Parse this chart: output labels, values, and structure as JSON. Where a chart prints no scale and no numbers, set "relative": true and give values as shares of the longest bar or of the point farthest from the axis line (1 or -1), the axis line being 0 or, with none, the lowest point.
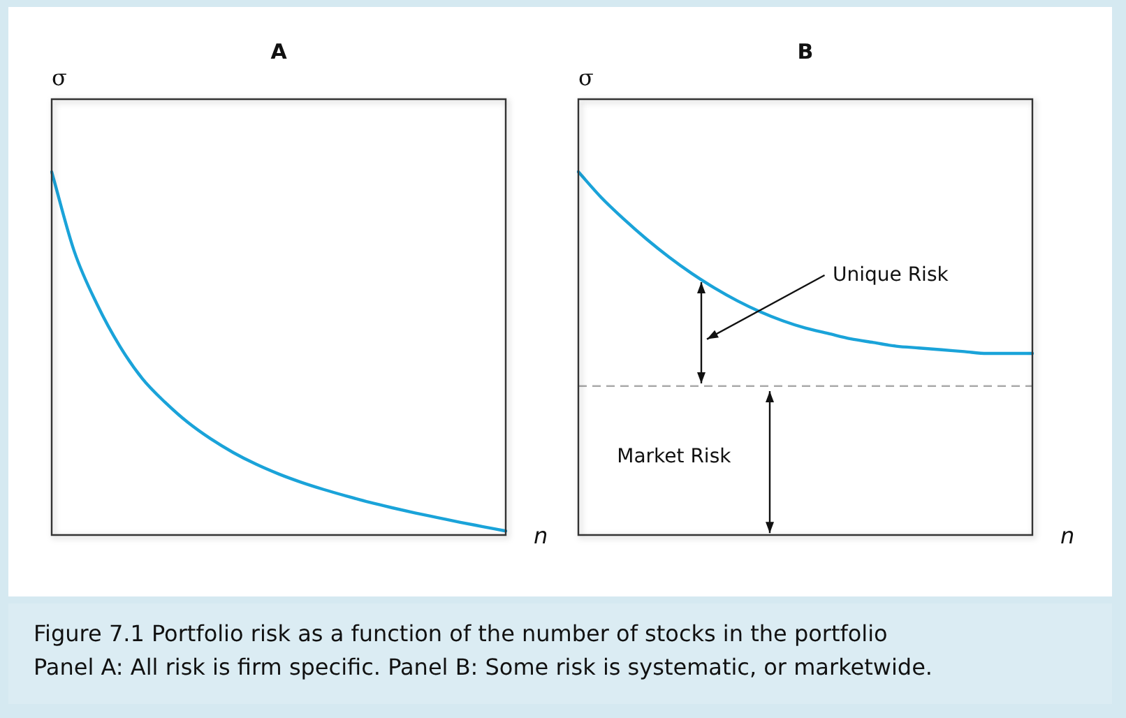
{
  "chart_data": [
    {
      "type": "line",
      "title": "A",
      "xlabel": "n",
      "ylabel": "σ",
      "relative": true,
      "categories": [
        null,
        null,
        null,
        null,
        null,
        null,
        null,
        null,
        null,
        null,
        null,
        null,
        null,
        null,
        null,
        null,
        null,
        null,
        null,
        null,
        null
      ],
      "series": [
        {
          "color": "#1aa3d9",
          "values": [
            1.0,
            0.78,
            0.635,
            0.52,
            0.43,
            0.365,
            0.31,
            0.265,
            0.227,
            0.195,
            0.168,
            0.145,
            0.125,
            0.107,
            0.09,
            0.075,
            0.061,
            0.048,
            0.035,
            0.023,
            0.011
          ]
        }
      ],
      "annotations": [
        "Figure 7.1 Portfolio risk as a function of the number of stocks in the portfolio",
        "Panel A: All risk is firm specific. Panel B: Some risk is systematic, or marketwide."
      ]
    },
    {
      "type": "line",
      "title": "B",
      "xlabel": "n",
      "ylabel": "σ",
      "relative": true,
      "categories": [
        null,
        null,
        null,
        null,
        null,
        null,
        null,
        null,
        null,
        null,
        null,
        null,
        null,
        null,
        null,
        null,
        null,
        null,
        null,
        null,
        null
      ],
      "series": [
        {
          "color": "#1aa3d9",
          "values": [
            1.0,
            0.93,
            0.87,
            0.815,
            0.765,
            0.72,
            0.68,
            0.645,
            0.615,
            0.59,
            0.57,
            0.555,
            0.54,
            0.53,
            0.52,
            0.515,
            0.51,
            0.505,
            0.5,
            0.5,
            0.5
          ]
        }
      ],
      "ref_lines": [
        {
          "axis": "y",
          "value": 0.41,
          "color": "#aaaaaa",
          "line_style": "dashed"
        }
      ],
      "annotations": [
        "Unique Risk",
        "Market Risk"
      ]
    }
  ]
}
